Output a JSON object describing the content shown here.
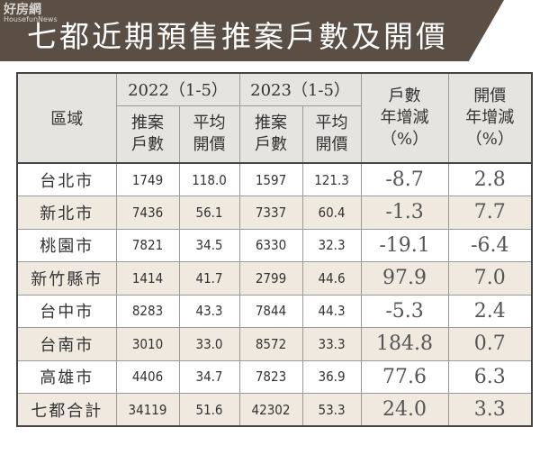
{
  "watermark": {
    "name": "好房網",
    "sub": "HousefunNews"
  },
  "header": {
    "title": "七都近期預售推案戶數及開價"
  },
  "table": {
    "head": {
      "region": "區域",
      "year1": "2022（1-5）",
      "year2": "2023（1-5）",
      "units_change": [
        "戶數",
        "年增減",
        "（%）"
      ],
      "price_change": [
        "開價",
        "年增減",
        "（%）"
      ],
      "sub": [
        [
          "推案",
          "戶數"
        ],
        [
          "平均",
          "開價"
        ],
        [
          "推案",
          "戶數"
        ],
        [
          "平均",
          "開價"
        ]
      ]
    },
    "rows": [
      [
        "台北市",
        "1749",
        "118.0",
        "1597",
        "121.3",
        "-8.7",
        "2.8"
      ],
      [
        "新北市",
        "7436",
        "56.1",
        "7337",
        "60.4",
        "-1.3",
        "7.7"
      ],
      [
        "桃園市",
        "7821",
        "34.5",
        "6330",
        "32.3",
        "-19.1",
        "-6.4"
      ],
      [
        "新竹縣市",
        "1414",
        "41.7",
        "2799",
        "44.6",
        "97.9",
        "7.0"
      ],
      [
        "台中市",
        "8283",
        "43.3",
        "7844",
        "44.3",
        "-5.3",
        "2.4"
      ],
      [
        "台南市",
        "3010",
        "33.0",
        "8572",
        "33.3",
        "184.8",
        "0.7"
      ],
      [
        "高雄市",
        "4406",
        "34.7",
        "7823",
        "36.9",
        "77.6",
        "6.3"
      ],
      [
        "七都合計",
        "34119",
        "51.6",
        "42302",
        "53.3",
        "24.0",
        "3.3"
      ]
    ]
  }
}
